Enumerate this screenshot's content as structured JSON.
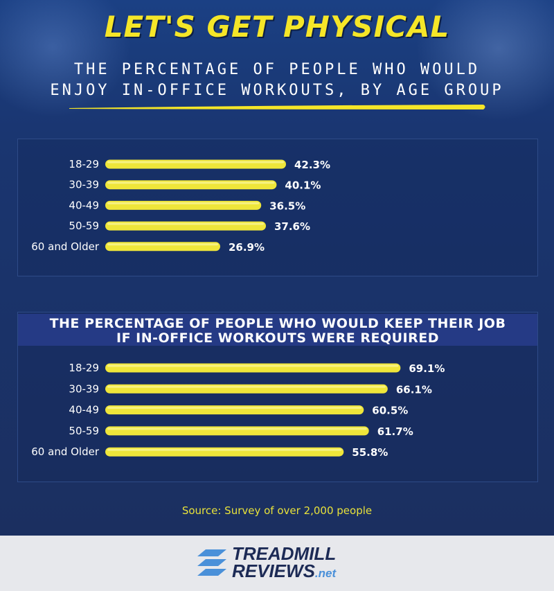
{
  "header": {
    "title": "LET'S GET PHYSICAL",
    "subtitle_line1": "THE PERCENTAGE OF PEOPLE WHO WOULD",
    "subtitle_line2": "ENJOY IN-OFFICE WORKOUTS, BY AGE GROUP"
  },
  "colors": {
    "bar": "#efe63a",
    "accent_yellow": "#f5e628",
    "background": "#1a3470",
    "footer": "#e7e8ec",
    "logo_blue": "#4a90d9"
  },
  "chart_data": [
    {
      "type": "bar",
      "orientation": "horizontal",
      "title": "THE PERCENTAGE OF PEOPLE WHO WOULD ENJOY IN-OFFICE WORKOUTS, BY AGE GROUP",
      "categories": [
        "18-29",
        "30-39",
        "40-49",
        "50-59",
        "60 and Older"
      ],
      "values": [
        42.3,
        40.1,
        36.5,
        37.6,
        26.9
      ],
      "value_labels": [
        "42.3%",
        "40.1%",
        "36.5%",
        "37.6%",
        "26.9%"
      ],
      "unit": "%",
      "xlim": [
        0,
        100
      ]
    },
    {
      "type": "bar",
      "orientation": "horizontal",
      "title_line1": "THE PERCENTAGE OF PEOPLE WHO WOULD KEEP THEIR JOB",
      "title_line2": "IF IN-OFFICE WORKOUTS WERE REQUIRED",
      "categories": [
        "18-29",
        "30-39",
        "40-49",
        "50-59",
        "60 and Older"
      ],
      "values": [
        69.1,
        66.1,
        60.5,
        61.7,
        55.8
      ],
      "value_labels": [
        "69.1%",
        "66.1%",
        "60.5%",
        "61.7%",
        "55.8%"
      ],
      "unit": "%",
      "xlim": [
        0,
        100
      ]
    }
  ],
  "source": "Source: Survey of over 2,000 people",
  "footer": {
    "logo_line1": "TREADMILL",
    "logo_line2": "REVIEWS",
    "logo_suffix": ".net",
    "logo_icon": "stripes-logo-icon"
  }
}
